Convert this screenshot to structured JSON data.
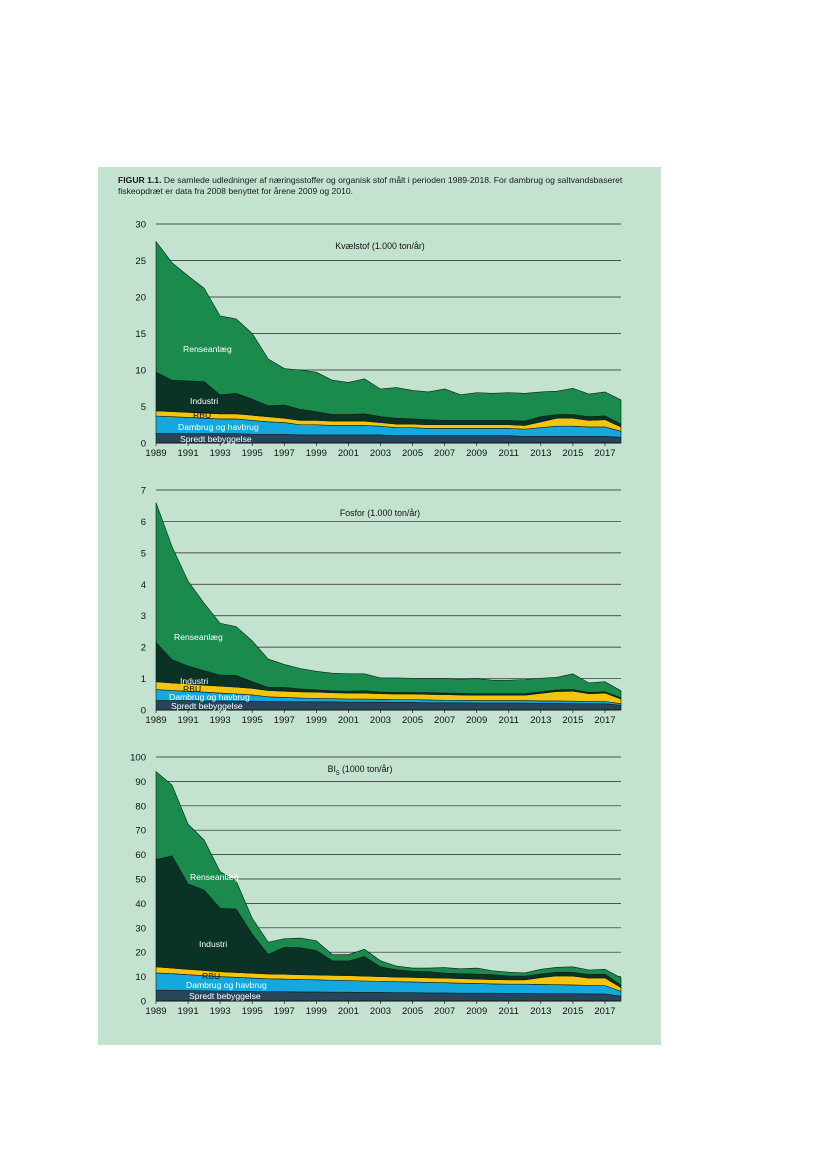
{
  "caption": {
    "label": "FIGUR 1.1.",
    "text": " De samlede udledninger af næringsstoffer og organisk stof målt i perioden 1989-2018. For dambrug og saltvandsbaseret fiskeopdræt er data fra 2008 benyttet for årene 2009 og 2010."
  },
  "colors": {
    "background": "#c4e2d0",
    "Spredt bebyggelse": "#27455a",
    "Dambrug og havbrug": "#14a8df",
    "RBU": "#f4c40f",
    "Industri": "#0a3325",
    "Renseanlæg": "#1a8a4d"
  },
  "chart_data": [
    {
      "type": "area",
      "stacked": true,
      "title": "Kvælstof (1.000 ton/år)",
      "x": [
        1989,
        1990,
        1991,
        1992,
        1993,
        1994,
        1995,
        1996,
        1997,
        1998,
        1999,
        2000,
        2001,
        2002,
        2003,
        2004,
        2005,
        2006,
        2007,
        2008,
        2009,
        2010,
        2011,
        2012,
        2013,
        2014,
        2015,
        2016,
        2017,
        2018
      ],
      "xticks": [
        "1989",
        "1991",
        "1993",
        "1995",
        "1997",
        "1999",
        "2001",
        "2003",
        "2005",
        "2007",
        "2009",
        "2011",
        "2013",
        "2015",
        "2017"
      ],
      "yticks": [
        "0",
        "5",
        "10",
        "15",
        "20",
        "25",
        "30"
      ],
      "ylim": [
        0,
        30
      ],
      "grid": true,
      "series": [
        {
          "name": "Spredt bebyggelse",
          "values": [
            1.3,
            1.3,
            1.3,
            1.3,
            1.3,
            1.3,
            1.2,
            1.2,
            1.2,
            1.1,
            1.1,
            1.1,
            1.1,
            1.1,
            1.1,
            1.0,
            1.0,
            1.0,
            1.0,
            1.0,
            1.0,
            1.0,
            1.0,
            0.9,
            0.9,
            0.9,
            0.9,
            0.9,
            0.9,
            0.8
          ]
        },
        {
          "name": "Dambrug og havbrug",
          "values": [
            2.4,
            2.3,
            2.2,
            2.1,
            2.0,
            2.0,
            1.9,
            1.7,
            1.6,
            1.4,
            1.4,
            1.3,
            1.3,
            1.3,
            1.2,
            1.1,
            1.1,
            1.0,
            1.0,
            1.0,
            1.0,
            1.0,
            1.0,
            1.0,
            1.2,
            1.4,
            1.4,
            1.3,
            1.3,
            0.8
          ]
        },
        {
          "name": "RBU",
          "values": [
            0.7,
            0.7,
            0.7,
            0.7,
            0.7,
            0.7,
            0.7,
            0.7,
            0.6,
            0.6,
            0.6,
            0.6,
            0.6,
            0.6,
            0.5,
            0.5,
            0.5,
            0.5,
            0.5,
            0.5,
            0.5,
            0.5,
            0.5,
            0.5,
            0.8,
            1.1,
            1.1,
            0.9,
            1.0,
            0.6
          ]
        },
        {
          "name": "Industri",
          "values": [
            5.3,
            4.3,
            4.3,
            4.3,
            2.6,
            2.8,
            2.2,
            1.5,
            1.8,
            1.5,
            1.2,
            0.9,
            0.9,
            1.0,
            0.8,
            0.8,
            0.7,
            0.7,
            0.6,
            0.6,
            0.6,
            0.6,
            0.6,
            0.6,
            0.7,
            0.5,
            0.5,
            0.5,
            0.5,
            0.4
          ]
        },
        {
          "name": "Renseanlæg",
          "values": [
            17.9,
            16.1,
            14.4,
            12.8,
            10.8,
            10.2,
            9.0,
            6.4,
            5.0,
            5.4,
            5.4,
            4.7,
            4.4,
            4.8,
            3.8,
            4.2,
            3.9,
            3.8,
            4.3,
            3.5,
            3.8,
            3.7,
            3.8,
            3.8,
            3.4,
            3.2,
            3.6,
            3.1,
            3.3,
            3.3
          ]
        }
      ]
    },
    {
      "type": "area",
      "stacked": true,
      "title": "Fosfor (1.000 ton/år)",
      "x": [
        1989,
        1990,
        1991,
        1992,
        1993,
        1994,
        1995,
        1996,
        1997,
        1998,
        1999,
        2000,
        2001,
        2002,
        2003,
        2004,
        2005,
        2006,
        2007,
        2008,
        2009,
        2010,
        2011,
        2012,
        2013,
        2014,
        2015,
        2016,
        2017,
        2018
      ],
      "xticks": [
        "1989",
        "1991",
        "1993",
        "1995",
        "1997",
        "1999",
        "2001",
        "2003",
        "2005",
        "2007",
        "2009",
        "2011",
        "2013",
        "2015",
        "2017"
      ],
      "yticks": [
        "0",
        "1",
        "2",
        "3",
        "4",
        "5",
        "6",
        "7"
      ],
      "ylim": [
        0,
        7
      ],
      "grid": true,
      "series": [
        {
          "name": "Spredt bebyggelse",
          "values": [
            0.3,
            0.3,
            0.3,
            0.29,
            0.29,
            0.28,
            0.28,
            0.27,
            0.27,
            0.26,
            0.26,
            0.26,
            0.25,
            0.25,
            0.25,
            0.24,
            0.24,
            0.23,
            0.23,
            0.23,
            0.22,
            0.22,
            0.22,
            0.22,
            0.21,
            0.21,
            0.2,
            0.2,
            0.2,
            0.15
          ]
        },
        {
          "name": "Dambrug og havbrug",
          "values": [
            0.35,
            0.32,
            0.3,
            0.28,
            0.25,
            0.23,
            0.2,
            0.15,
            0.13,
            0.12,
            0.11,
            0.1,
            0.1,
            0.1,
            0.09,
            0.09,
            0.09,
            0.09,
            0.08,
            0.08,
            0.08,
            0.08,
            0.08,
            0.08,
            0.08,
            0.08,
            0.08,
            0.07,
            0.07,
            0.05
          ]
        },
        {
          "name": "RBU",
          "values": [
            0.25,
            0.24,
            0.23,
            0.22,
            0.22,
            0.22,
            0.21,
            0.2,
            0.2,
            0.2,
            0.2,
            0.19,
            0.19,
            0.19,
            0.18,
            0.18,
            0.18,
            0.18,
            0.18,
            0.17,
            0.17,
            0.17,
            0.17,
            0.17,
            0.24,
            0.3,
            0.32,
            0.25,
            0.27,
            0.15
          ]
        },
        {
          "name": "Industri",
          "values": [
            1.25,
            0.74,
            0.57,
            0.46,
            0.35,
            0.37,
            0.21,
            0.1,
            0.12,
            0.09,
            0.07,
            0.06,
            0.06,
            0.07,
            0.05,
            0.05,
            0.05,
            0.05,
            0.05,
            0.05,
            0.05,
            0.05,
            0.05,
            0.05,
            0.05,
            0.05,
            0.05,
            0.04,
            0.04,
            0.04
          ]
        },
        {
          "name": "Renseanlæg",
          "values": [
            4.45,
            3.6,
            2.7,
            2.15,
            1.65,
            1.55,
            1.3,
            0.9,
            0.73,
            0.65,
            0.59,
            0.56,
            0.55,
            0.54,
            0.45,
            0.46,
            0.45,
            0.45,
            0.46,
            0.45,
            0.48,
            0.43,
            0.43,
            0.45,
            0.43,
            0.4,
            0.5,
            0.3,
            0.32,
            0.22
          ]
        }
      ]
    },
    {
      "type": "area",
      "stacked": true,
      "title": "BI5 (1000 ton/år)",
      "x": [
        1989,
        1990,
        1991,
        1992,
        1993,
        1994,
        1995,
        1996,
        1997,
        1998,
        1999,
        2000,
        2001,
        2002,
        2003,
        2004,
        2005,
        2006,
        2007,
        2008,
        2009,
        2010,
        2011,
        2012,
        2013,
        2014,
        2015,
        2016,
        2017,
        2018
      ],
      "xticks": [
        "1989",
        "1991",
        "1993",
        "1995",
        "1997",
        "1999",
        "2001",
        "2003",
        "2005",
        "2007",
        "2009",
        "2011",
        "2013",
        "2015",
        "2017"
      ],
      "yticks": [
        "0",
        "10",
        "20",
        "30",
        "40",
        "50",
        "60",
        "70",
        "80",
        "90",
        "100"
      ],
      "ylim": [
        0,
        100
      ],
      "grid": true,
      "series": [
        {
          "name": "Spredt bebyggelse",
          "values": [
            4.5,
            4.4,
            4.3,
            4.2,
            4.1,
            4.0,
            3.9,
            3.8,
            3.8,
            3.7,
            3.7,
            3.6,
            3.6,
            3.5,
            3.5,
            3.4,
            3.4,
            3.3,
            3.3,
            3.2,
            3.2,
            3.2,
            3.1,
            3.1,
            3.0,
            3.0,
            3.0,
            2.9,
            2.9,
            2.0
          ]
        },
        {
          "name": "Dambrug og havbrug",
          "values": [
            7.0,
            6.8,
            6.5,
            6.2,
            5.9,
            5.7,
            5.5,
            5.3,
            5.2,
            5.1,
            5.0,
            4.9,
            4.8,
            4.7,
            4.6,
            4.5,
            4.4,
            4.3,
            4.2,
            4.1,
            4.0,
            3.8,
            3.8,
            3.8,
            3.8,
            3.7,
            3.6,
            3.5,
            3.4,
            2.0
          ]
        },
        {
          "name": "RBU",
          "values": [
            2.5,
            2.3,
            2.2,
            2.1,
            2.0,
            2.0,
            2.0,
            2.0,
            2.0,
            2.0,
            2.0,
            2.0,
            2.0,
            2.0,
            1.9,
            1.9,
            1.9,
            1.9,
            1.9,
            1.9,
            1.8,
            1.8,
            1.8,
            1.8,
            2.8,
            3.6,
            3.6,
            3.0,
            3.2,
            1.5
          ]
        },
        {
          "name": "Industri",
          "values": [
            44.0,
            46.0,
            35.0,
            33.0,
            26.0,
            26.0,
            16.0,
            8.0,
            11.0,
            11.0,
            10.0,
            6.0,
            6.0,
            8.0,
            4.0,
            3.0,
            2.5,
            2.5,
            2.0,
            2.0,
            2.0,
            2.0,
            1.5,
            1.5,
            1.5,
            1.5,
            1.5,
            1.5,
            1.5,
            1.0
          ]
        },
        {
          "name": "Renseanlæg",
          "values": [
            36.0,
            29.0,
            24.5,
            20.5,
            15.0,
            11.5,
            6.5,
            5.0,
            3.5,
            4.0,
            4.0,
            2.5,
            2.6,
            3.0,
            2.5,
            1.5,
            1.3,
            1.5,
            2.3,
            2.0,
            2.5,
            1.6,
            1.6,
            1.3,
            1.9,
            2.0,
            2.3,
            1.8,
            2.0,
            3.0
          ]
        }
      ]
    }
  ],
  "label_text": {
    "Spredt bebyggelse": "Spredt bebyggelse",
    "Dambrug og havbrug": "Dambrug og havbrug",
    "RBU": "RBU",
    "Industri": "Industri",
    "Renseanlæg": "Renseanlæg"
  }
}
